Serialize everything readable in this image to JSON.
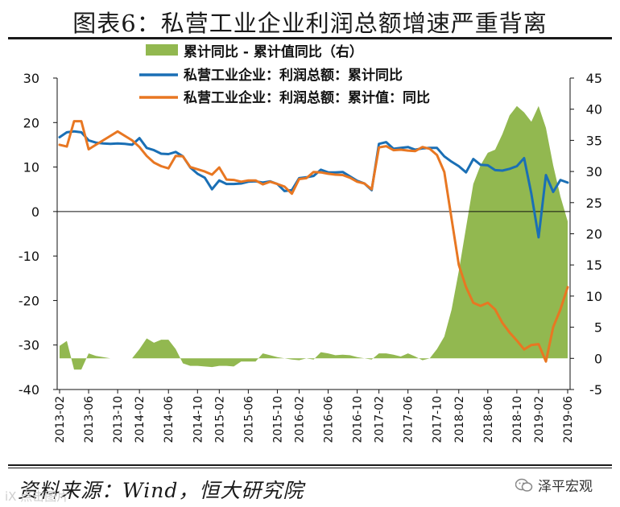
{
  "title": "图表6：私营工业企业利润总额增速严重背离",
  "source_text": "资料来源：Wind，恒大研究院",
  "brand_text": "泽平宏观",
  "watermark_text": "iX 点击图片",
  "colors": {
    "area": "#92b850",
    "series_cum_yoy": "#1a6fb5",
    "series_cum_value_yoy": "#e87722",
    "text": "#111111"
  },
  "chart_data": {
    "type": "line+area",
    "x": [
      "2013-02",
      "2013-03",
      "2013-04",
      "2013-05",
      "2013-06",
      "2013-07",
      "2013-08",
      "2013-09",
      "2013-10",
      "2013-11",
      "2013-12",
      "2014-02",
      "2014-03",
      "2014-04",
      "2014-05",
      "2014-06",
      "2014-07",
      "2014-08",
      "2014-09",
      "2014-10",
      "2014-11",
      "2014-12",
      "2015-02",
      "2015-03",
      "2015-04",
      "2015-05",
      "2015-06",
      "2015-07",
      "2015-08",
      "2015-09",
      "2015-10",
      "2015-11",
      "2015-12",
      "2016-02",
      "2016-03",
      "2016-04",
      "2016-05",
      "2016-06",
      "2016-07",
      "2016-08",
      "2016-09",
      "2016-10",
      "2016-11",
      "2016-12",
      "2017-02",
      "2017-03",
      "2017-04",
      "2017-05",
      "2017-06",
      "2017-07",
      "2017-08",
      "2017-09",
      "2017-10",
      "2017-11",
      "2017-12",
      "2018-02",
      "2018-03",
      "2018-04",
      "2018-05",
      "2018-06",
      "2018-07",
      "2018-08",
      "2018-09",
      "2018-10",
      "2018-11",
      "2018-12",
      "2019-02",
      "2019-03",
      "2019-04",
      "2019-05",
      "2019-06"
    ],
    "xticks": [
      "2013-02",
      "2013-06",
      "2013-10",
      "2014-02",
      "2014-06",
      "2014-10",
      "2015-02",
      "2015-06",
      "2015-10",
      "2016-02",
      "2016-06",
      "2016-10",
      "2017-02",
      "2017-06",
      "2017-10",
      "2018-02",
      "2018-06",
      "2018-10",
      "2019-02",
      "2019-06"
    ],
    "left_axis": {
      "ylim": [
        -40,
        30
      ],
      "ticks": [
        30,
        20,
        10,
        0,
        -10,
        -20,
        -30,
        -40
      ]
    },
    "right_axis": {
      "ylim": [
        -5,
        45
      ],
      "ticks": [
        45,
        40,
        35,
        30,
        25,
        20,
        15,
        10,
        5,
        0,
        -5
      ]
    },
    "series": [
      {
        "name": "累计同比 - 累计值同比（右）",
        "axis": "right",
        "kind": "area",
        "values": [
          2,
          2.8,
          -1.8,
          -1.8,
          0.8,
          0.4,
          0.2,
          0,
          0,
          0,
          0,
          1.5,
          3.2,
          2.5,
          3,
          3,
          1.5,
          -0.8,
          -1.2,
          -1.2,
          -1.3,
          -1.4,
          -1.2,
          -1.2,
          -1.3,
          -0.5,
          -0.5,
          -0.5,
          0.8,
          0.5,
          0.2,
          0,
          -0.2,
          -0.3,
          0,
          -0.2,
          1,
          0.8,
          0.5,
          0.6,
          0.5,
          0.2,
          0,
          -0.2,
          0.8,
          0.8,
          0.6,
          0.3,
          0.8,
          0.3,
          -0.3,
          0,
          1.5,
          3.5,
          7.8,
          14,
          21,
          28,
          31,
          33,
          33.5,
          36,
          39,
          40.5,
          39.5,
          38,
          40.5,
          37,
          31,
          26,
          22
        ]
      },
      {
        "name": "私营工业企业：利润总额：累计同比",
        "axis": "left",
        "kind": "line",
        "values": [
          16.7,
          17.8,
          18,
          17.8,
          16,
          15.5,
          15.3,
          15.2,
          15.3,
          15.2,
          15,
          16.5,
          14.3,
          13.8,
          13,
          12.9,
          13.4,
          12.4,
          9.9,
          8.5,
          7.6,
          5,
          7,
          6.2,
          6.2,
          6.3,
          6.7,
          6.8,
          6.5,
          6.8,
          6.2,
          4.6,
          4.8,
          7.5,
          7.7,
          8,
          9.4,
          8.8,
          8.8,
          8.9,
          7.9,
          6.9,
          6.3,
          4.8,
          15.2,
          15.6,
          14.1,
          14.3,
          14.5,
          13.9,
          14.2,
          14.3,
          14.3,
          12.4,
          11.2,
          10.2,
          8.8,
          11.8,
          10.5,
          10.4,
          9.3,
          9.2,
          9.6,
          10.2,
          12,
          4,
          -5.8,
          8.2,
          4.4,
          7.1,
          6.5
        ]
      },
      {
        "name": "私营工业企业：利润总额：累计值：同比",
        "axis": "left",
        "kind": "line",
        "values": [
          15,
          14.6,
          20.3,
          20.3,
          14,
          15,
          16,
          17,
          18,
          17,
          16,
          14.5,
          12.5,
          11,
          10.2,
          9.7,
          12.5,
          12.4,
          10,
          9.5,
          9,
          8.3,
          9.9,
          7.2,
          7.1,
          6.7,
          7,
          7,
          6.1,
          6.7,
          6.2,
          5.6,
          4,
          7.3,
          7.5,
          8.9,
          8.8,
          8.5,
          8.3,
          8.2,
          7.6,
          6.7,
          6.3,
          5,
          14.4,
          14.7,
          13.8,
          13.9,
          13.7,
          13.6,
          14.5,
          14.1,
          12.7,
          8.9,
          -1.6,
          -12,
          -17,
          -20.5,
          -21.2,
          -20.5,
          -22,
          -25,
          -27.2,
          -29,
          -31,
          -30,
          -29.8,
          -33.7,
          -26,
          -22,
          -17
        ]
      }
    ]
  }
}
